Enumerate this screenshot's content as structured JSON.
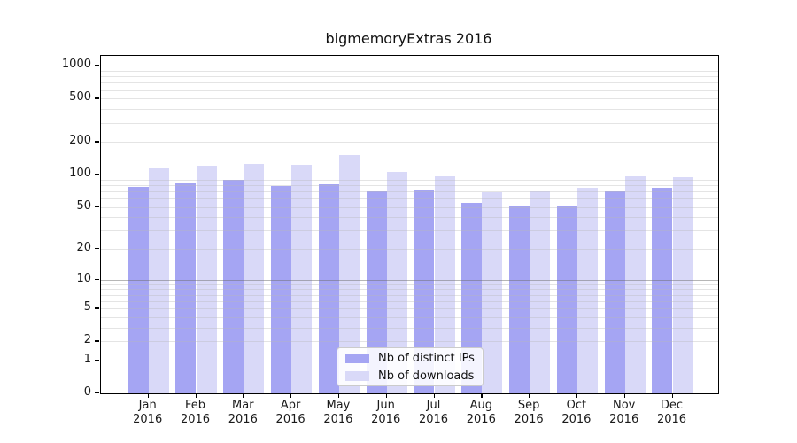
{
  "figure": {
    "background": "#ffffff"
  },
  "chart_data": {
    "type": "bar",
    "title": "bigmemoryExtras 2016",
    "categories": [
      "Jan 2016",
      "Feb 2016",
      "Mar 2016",
      "Apr 2016",
      "May 2016",
      "Jun 2016",
      "Jul 2016",
      "Aug 2016",
      "Sep 2016",
      "Oct 2016",
      "Nov 2016",
      "Dec 2016"
    ],
    "series": [
      {
        "name": "Nb of distinct IPs",
        "color": "#a5a5f3",
        "values": [
          77,
          85,
          90,
          79,
          81,
          70,
          73,
          55,
          51,
          52,
          70,
          75
        ]
      },
      {
        "name": "Nb of downloads",
        "color": "#d9d9f8",
        "values": [
          114,
          122,
          125,
          123,
          151,
          105,
          96,
          69,
          70,
          75,
          96,
          95
        ]
      }
    ],
    "xlabel": "",
    "ylabel": "",
    "yscale": "log1p",
    "ylim": [
      0,
      1236
    ],
    "y_ticks": [
      0,
      1,
      2,
      5,
      10,
      20,
      50,
      100,
      200,
      500,
      1000
    ],
    "grid": true,
    "major_grid_values": [
      1,
      10,
      100,
      1000
    ],
    "legend_position": "inside-bottom-center",
    "colors": {
      "major_grid": "#b0b0b0",
      "minor_grid": "#eaeaea",
      "axis": "#000000",
      "text": "#1a1a1a"
    }
  }
}
